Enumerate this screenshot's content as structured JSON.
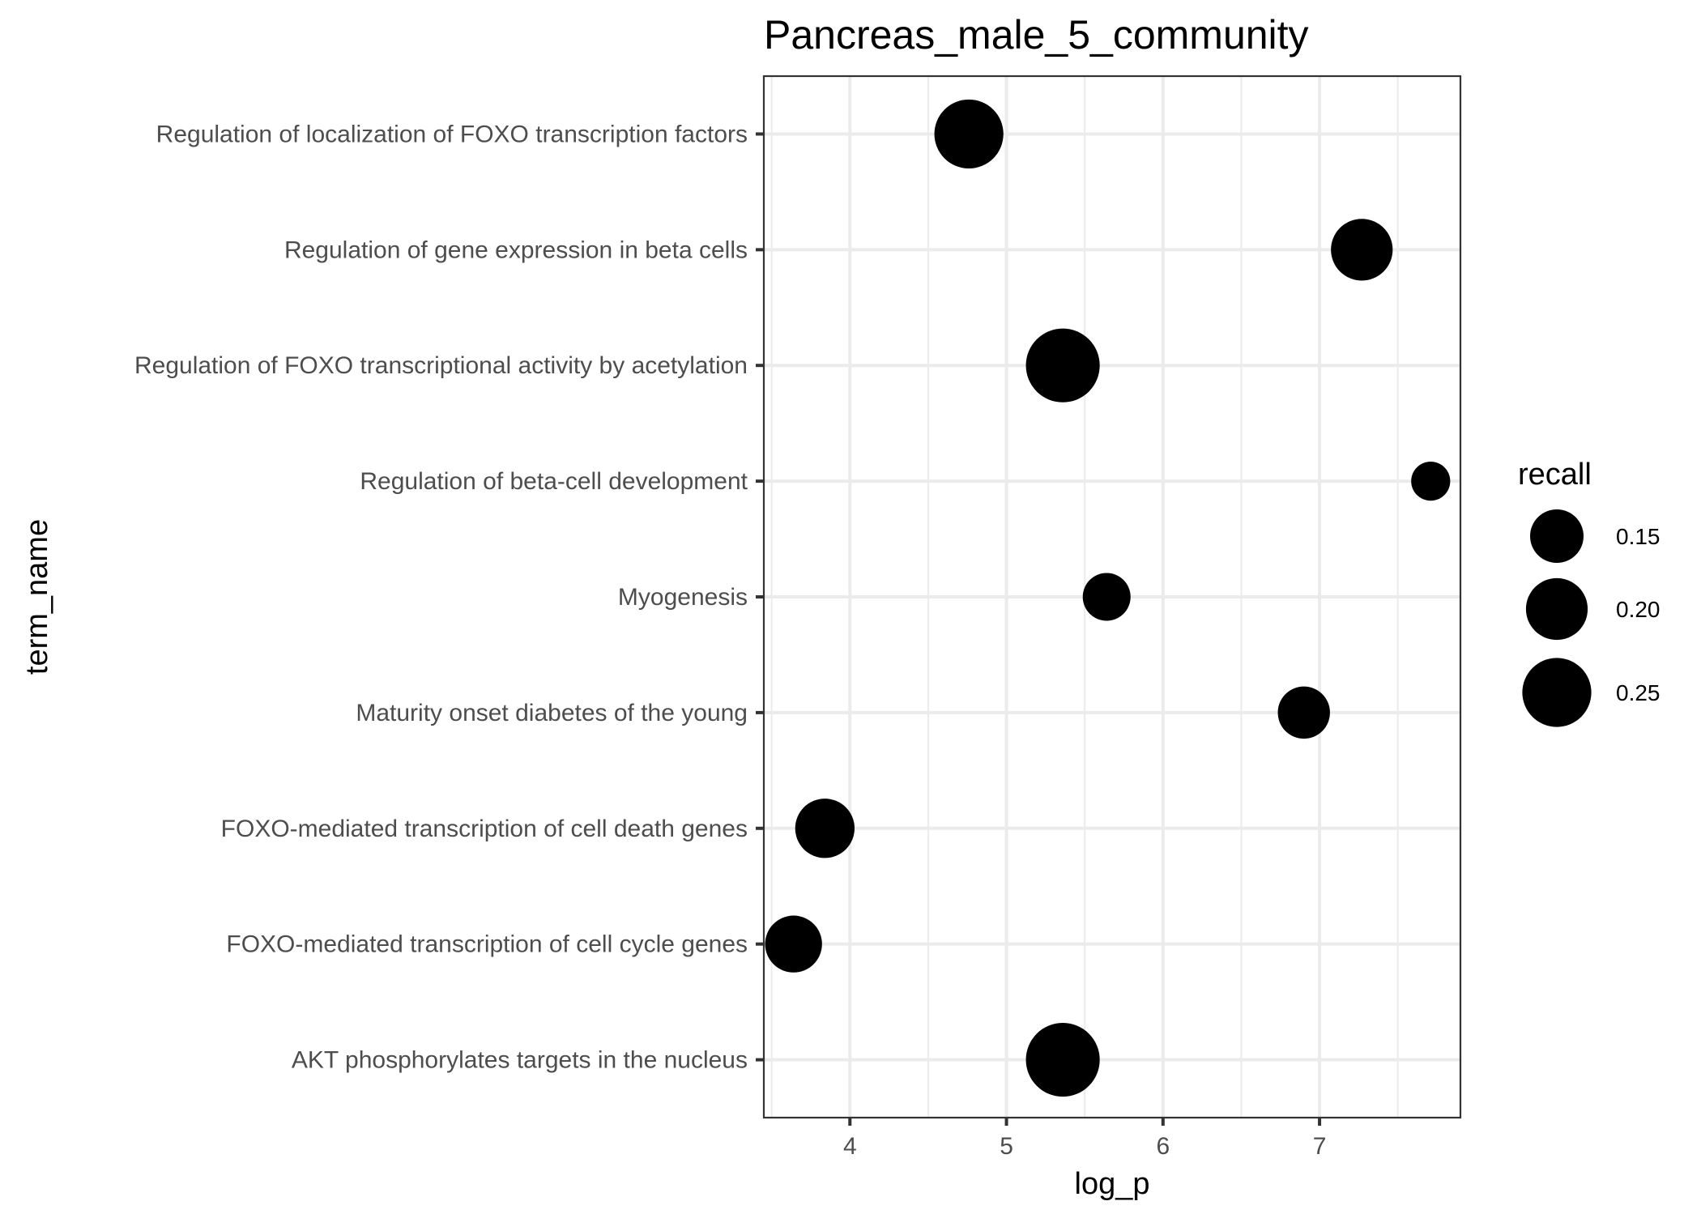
{
  "chart_data": {
    "type": "scatter",
    "title": "Pancreas_male_5_community",
    "xlabel": "log_p",
    "ylabel": "term_name",
    "xlim": [
      3.45,
      7.9
    ],
    "x_ticks": [
      4,
      5,
      6,
      7
    ],
    "categories": [
      "AKT phosphorylates targets in the nucleus",
      "FOXO-mediated transcription of cell cycle genes",
      "FOXO-mediated transcription of cell death genes",
      "Maturity onset diabetes of the young",
      "Myogenesis",
      "Regulation of beta-cell development",
      "Regulation of FOXO transcriptional activity by acetylation",
      "Regulation of gene expression in beta cells",
      "Regulation of localization of FOXO transcription factors"
    ],
    "points": [
      {
        "term": "AKT phosphorylates targets in the nucleus",
        "log_p": 5.36,
        "recall": 0.286
      },
      {
        "term": "FOXO-mediated transcription of cell cycle genes",
        "log_p": 3.64,
        "recall": 0.17
      },
      {
        "term": "FOXO-mediated transcription of cell death genes",
        "log_p": 3.84,
        "recall": 0.185
      },
      {
        "term": "Maturity onset diabetes of the young",
        "log_p": 6.9,
        "recall": 0.143
      },
      {
        "term": "Myogenesis",
        "log_p": 5.64,
        "recall": 0.12
      },
      {
        "term": "Regulation of beta-cell development",
        "log_p": 7.71,
        "recall": 0.08
      },
      {
        "term": "Regulation of FOXO transcriptional activity by acetylation",
        "log_p": 5.36,
        "recall": 0.286
      },
      {
        "term": "Regulation of gene expression in beta cells",
        "log_p": 7.27,
        "recall": 0.2
      },
      {
        "term": "Regulation of localization of FOXO transcription factors",
        "log_p": 4.76,
        "recall": 0.25
      }
    ],
    "legend": {
      "title": "recall",
      "placement": "right",
      "entries": [
        {
          "label": "0.15",
          "value": 0.15
        },
        {
          "label": "0.20",
          "value": 0.2
        },
        {
          "label": "0.25",
          "value": 0.25
        }
      ]
    },
    "grid": true,
    "point_color": "#000000"
  }
}
